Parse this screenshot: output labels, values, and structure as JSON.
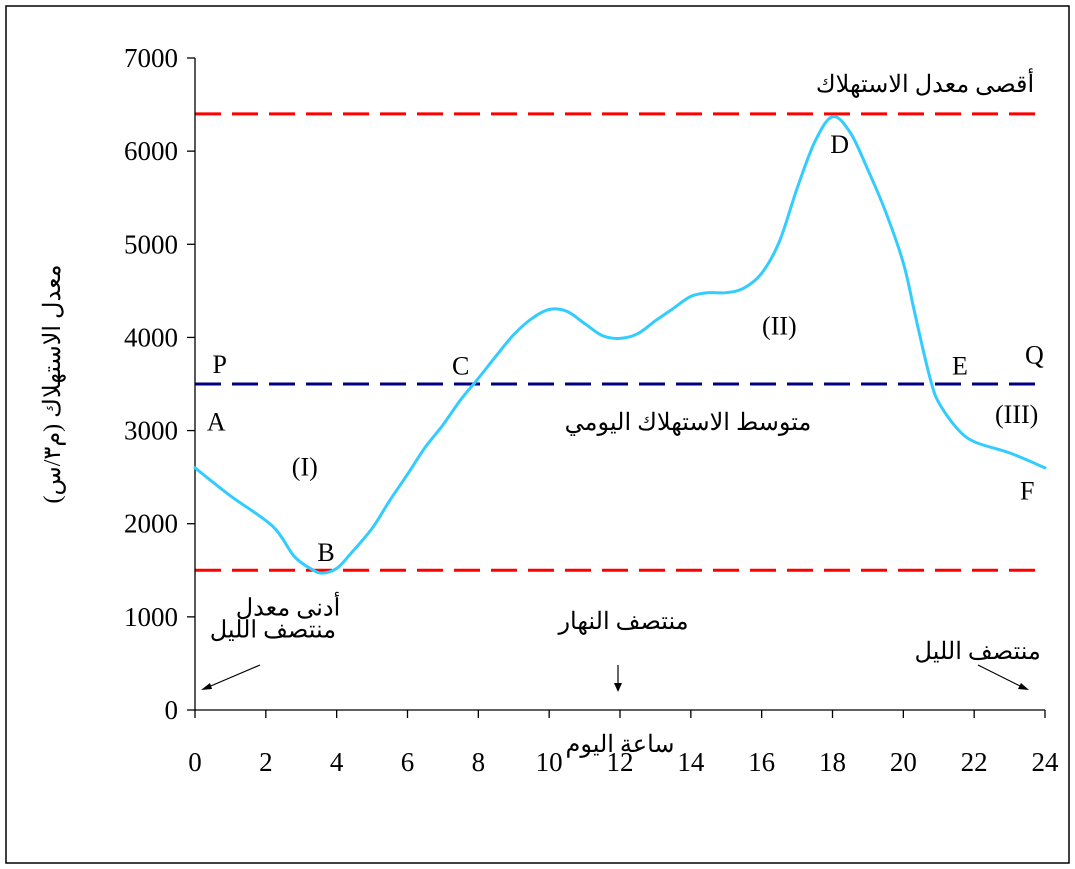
{
  "chart_data": {
    "type": "line",
    "xlabel": "ساعة اليوم",
    "ylabel": "معدل الاستهلاك (م٣/س)",
    "xlim": [
      0,
      24
    ],
    "ylim": [
      0,
      7000
    ],
    "x_ticks": [
      "0",
      "2",
      "4",
      "6",
      "8",
      "10",
      "12",
      "14",
      "16",
      "18",
      "20",
      "22",
      "24"
    ],
    "y_ticks": [
      "0",
      "1000",
      "2000",
      "3000",
      "4000",
      "5000",
      "6000",
      "7000"
    ],
    "grid": false,
    "series": [
      {
        "color": "#33ccff",
        "x": [
          0,
          1,
          2.2,
          2.8,
          3.3,
          3.6,
          4.0,
          4.4,
          5.0,
          5.5,
          6.0,
          6.5,
          7.0,
          7.5,
          8.0,
          8.5,
          9.0,
          9.5,
          10.0,
          10.5,
          11.0,
          11.5,
          12.0,
          12.5,
          13.0,
          13.5,
          14.0,
          14.5,
          15.0,
          15.5,
          16.0,
          16.5,
          17.0,
          17.5,
          18.0,
          18.5,
          19.0,
          19.5,
          20.0,
          20.3,
          20.6,
          20.8,
          21.0,
          21.5,
          22.0,
          23.0,
          24.0
        ],
        "y": [
          2600,
          2300,
          1970,
          1650,
          1510,
          1470,
          1520,
          1680,
          1950,
          2250,
          2530,
          2820,
          3060,
          3330,
          3560,
          3800,
          4030,
          4200,
          4300,
          4280,
          4150,
          4020,
          3990,
          4040,
          4180,
          4310,
          4440,
          4480,
          4480,
          4530,
          4690,
          5030,
          5600,
          6100,
          6370,
          6200,
          5800,
          5350,
          4800,
          4300,
          3800,
          3500,
          3300,
          3030,
          2880,
          2760,
          2600
        ]
      }
    ],
    "reference_lines": [
      {
        "name": "max",
        "y": 6400,
        "color": "#ff0000",
        "label": "أقصى معدل الاستهلاك"
      },
      {
        "name": "avg",
        "y": 3500,
        "color": "#000080",
        "label": "متوسط الاستهلاك اليومي"
      },
      {
        "name": "min",
        "y": 1500,
        "color": "#ff0000",
        "label": "أدنى معدل"
      }
    ],
    "annotations": [
      {
        "text": "A",
        "x": 0.6,
        "y": 3000
      },
      {
        "text": "B",
        "x": 3.7,
        "y": 1600
      },
      {
        "text": "C",
        "x": 7.5,
        "y": 3600
      },
      {
        "text": "D",
        "x": 18.2,
        "y": 5980
      },
      {
        "text": "E",
        "x": 21.6,
        "y": 3600
      },
      {
        "text": "F",
        "x": 23.5,
        "y": 2260
      },
      {
        "text": "P",
        "x": 0.7,
        "y": 3620
      },
      {
        "text": "Q",
        "x": 23.7,
        "y": 3720
      },
      {
        "text": "(I)",
        "x": 3.1,
        "y": 2520
      },
      {
        "text": "(II)",
        "x": 16.5,
        "y": 4030
      },
      {
        "text": "(III)",
        "x": 23.2,
        "y": 3080
      }
    ],
    "time_labels": [
      {
        "text": "منتصف الليل",
        "x": 2.2,
        "y": 780
      },
      {
        "text": "منتصف النهار",
        "x": 12.1,
        "y": 870
      },
      {
        "text": "منتصف الليل",
        "x": 22.1,
        "y": 550
      }
    ]
  }
}
